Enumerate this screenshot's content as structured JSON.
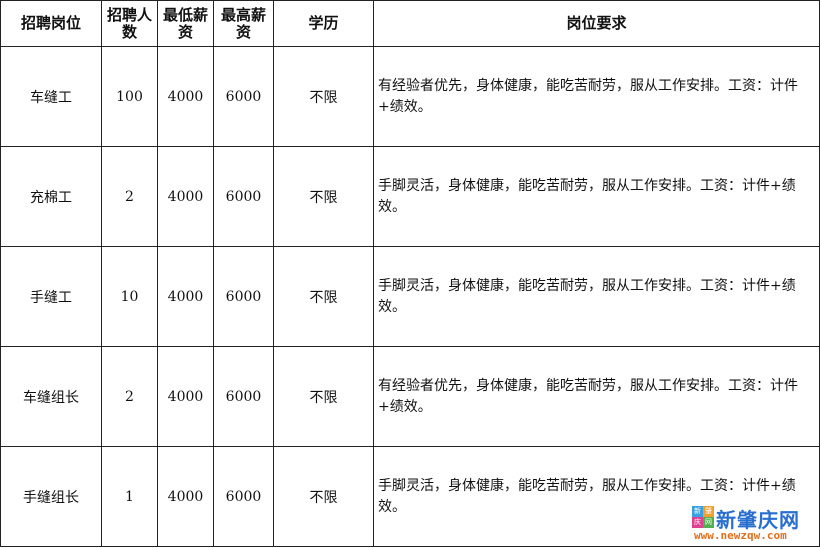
{
  "headers": [
    "招聘岗位",
    "招聘人数",
    "最低薪资",
    "最高薪资",
    "学历",
    "岗位要求"
  ],
  "rows": [
    {
      "position": "车缝工",
      "count": "100",
      "min_salary": "4000",
      "max_salary": "6000",
      "education": "不限",
      "requirement": "有经验者优先，身体健康，能吃苦耐劳，服从工作安排。工资：计件+绩效。"
    },
    {
      "position": "充棉工",
      "count": "2",
      "min_salary": "4000",
      "max_salary": "6000",
      "education": "不限",
      "requirement": "手脚灵活，身体健康，能吃苦耐劳，服从工作安排。工资：计件+绩效。"
    },
    {
      "position": "手缝工",
      "count": "10",
      "min_salary": "4000",
      "max_salary": "6000",
      "education": "不限",
      "requirement": "手脚灵活，身体健康，能吃苦耐劳，服从工作安排。工资：计件+绩效。"
    },
    {
      "position": "车缝组长",
      "count": "2",
      "min_salary": "4000",
      "max_salary": "6000",
      "education": "不限",
      "requirement": "有经验者优先，身体健康，能吃苦耐劳，服从工作安排。工资：计件+绩效。"
    },
    {
      "position": "手缝组长",
      "count": "1",
      "min_salary": "4000",
      "max_salary": "6000",
      "education": "不限",
      "requirement": "手脚灵活，身体健康，能吃苦耐劳，服从工作安排。工资：计件+绩效。"
    }
  ],
  "watermark": {
    "logo_chars": [
      "新",
      "肇",
      "庆",
      "网"
    ],
    "name": "新肇庆网",
    "url": "www.newzqw.com",
    "colors": [
      "#3aa0e0",
      "#f0a030",
      "#e04090",
      "#50b050"
    ]
  }
}
